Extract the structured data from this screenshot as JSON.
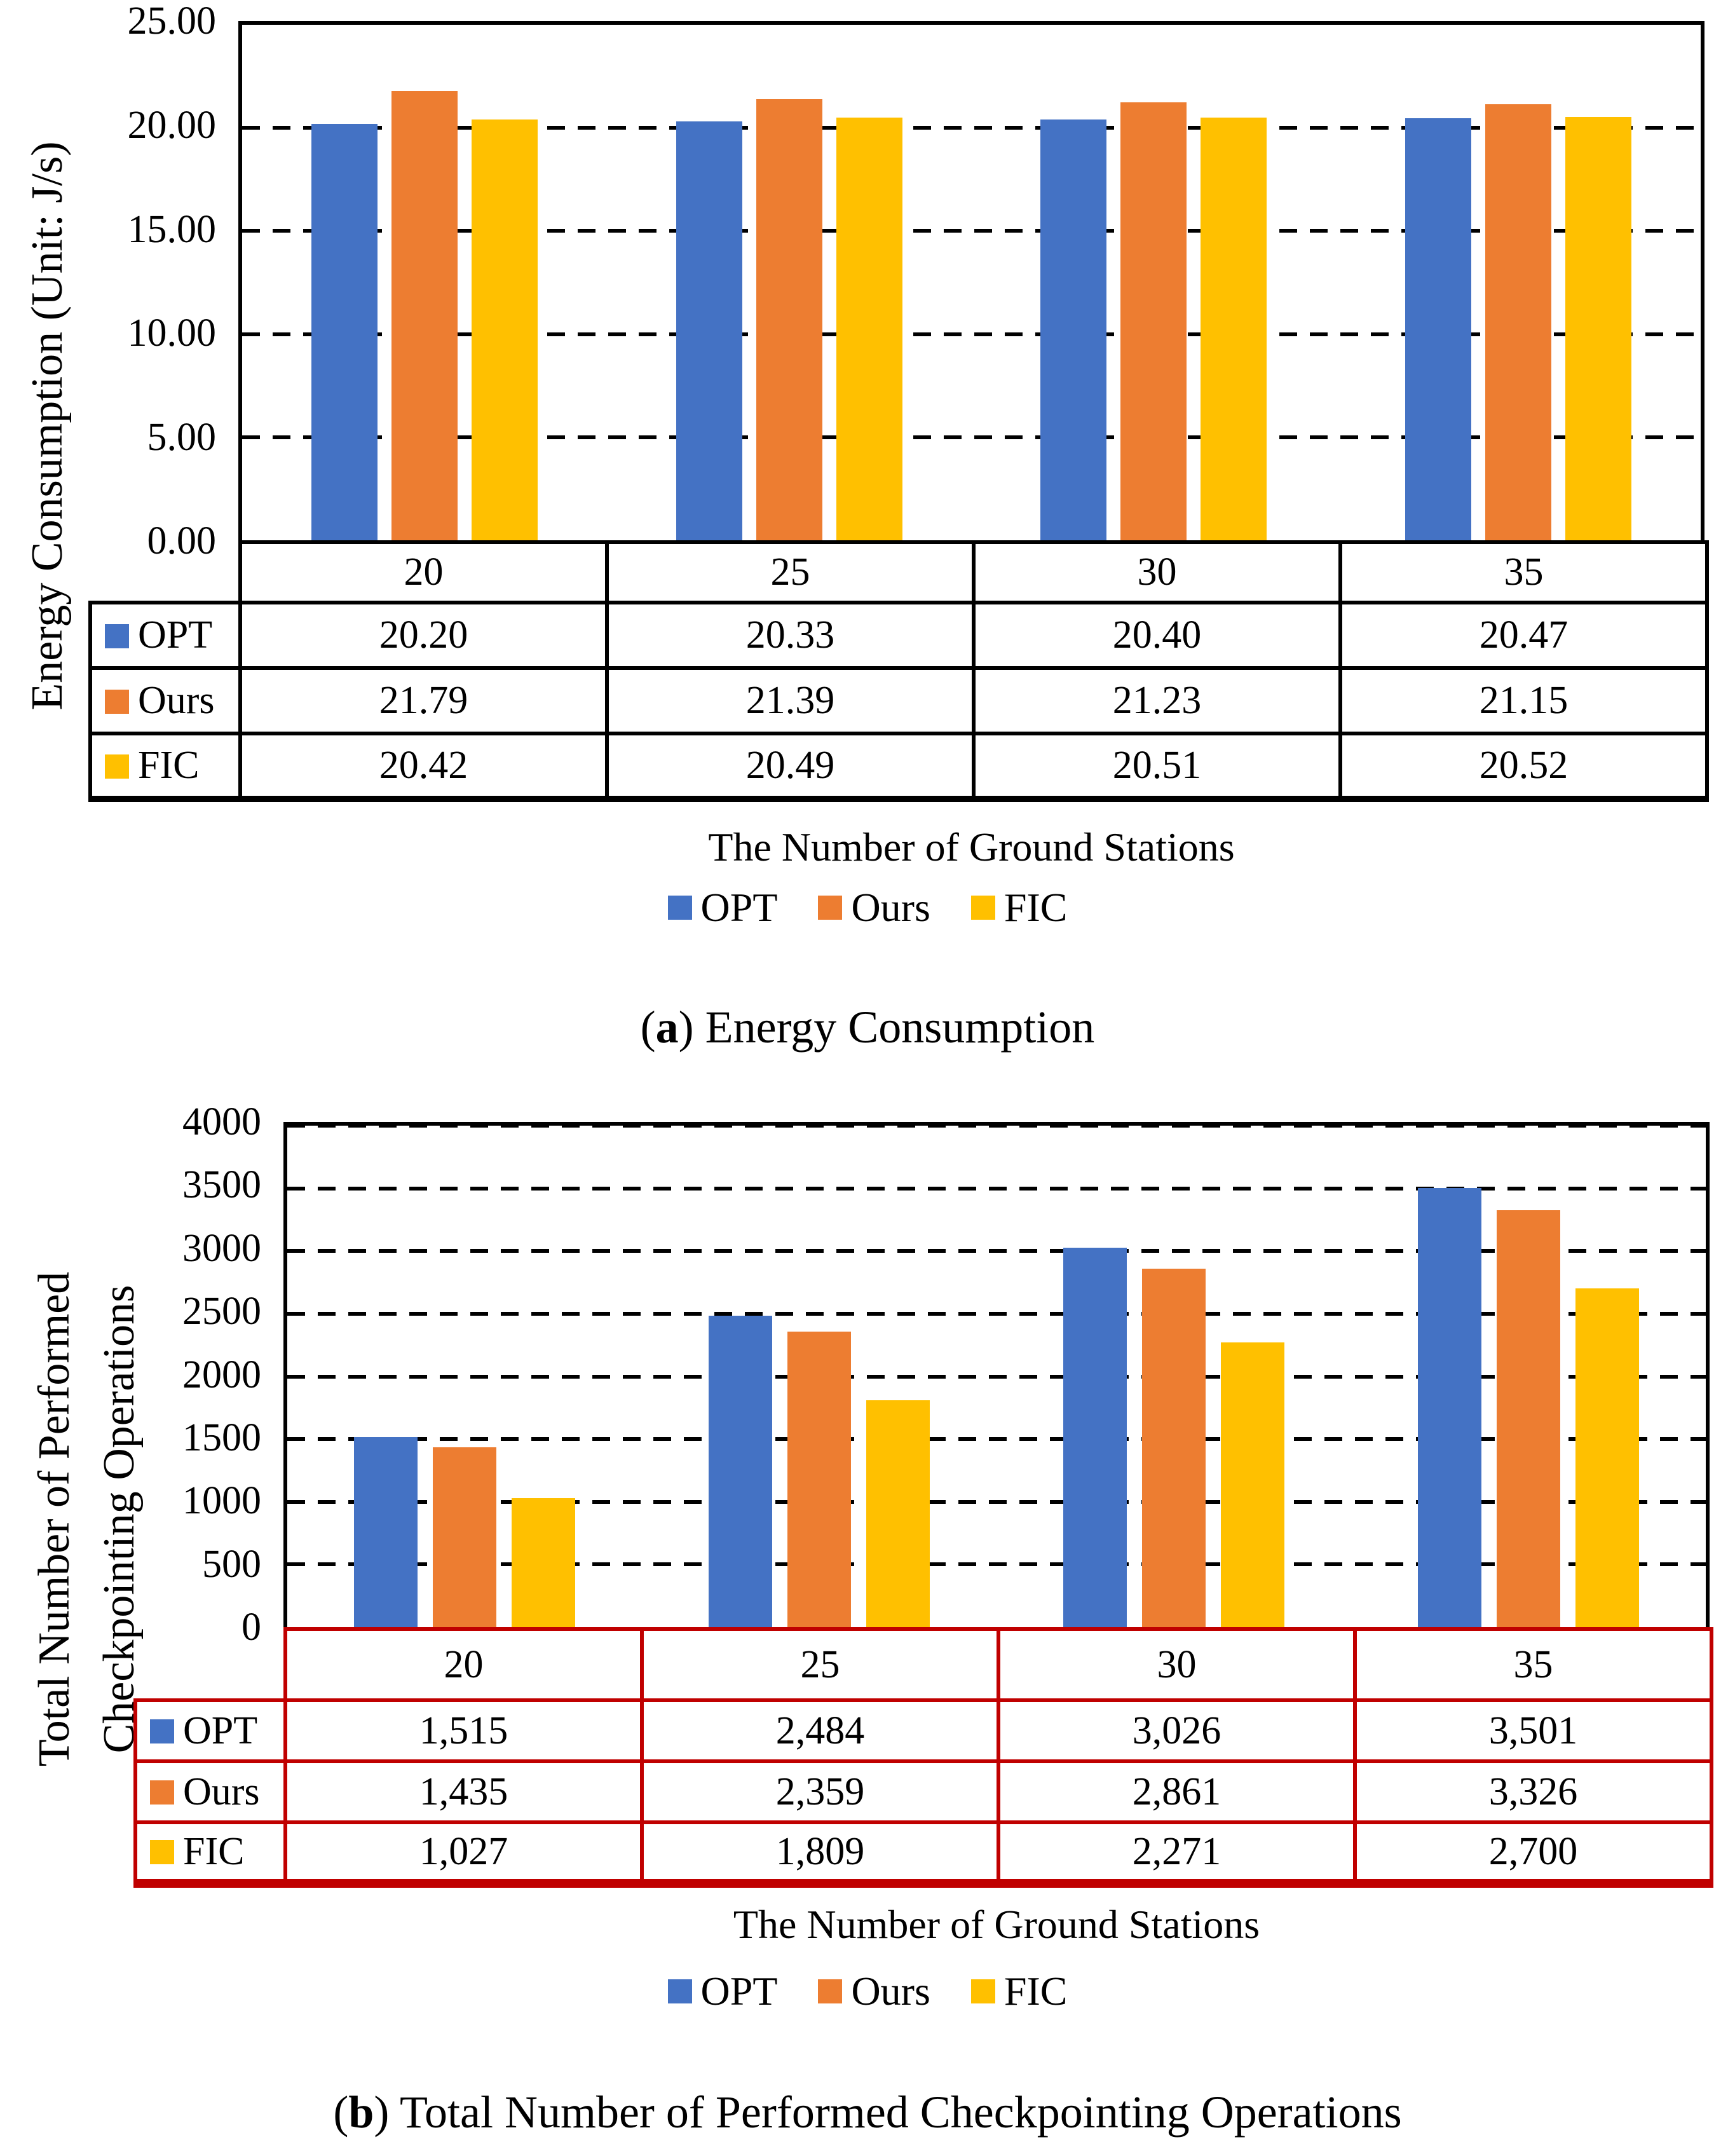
{
  "colors": {
    "opt": "#4472C4",
    "ours": "#ED7D31",
    "fic": "#FFC000",
    "grid": "#000000",
    "table_border_a": "#000000",
    "table_border_b": "#C00000",
    "background": "#FFFFFF"
  },
  "chart_data": [
    {
      "id": "a",
      "type": "bar",
      "caption": {
        "open": "(",
        "letter": "a",
        "rest": ") Energy Consumption"
      },
      "xlabel": "The Number of Ground Stations",
      "ylabel": "Energy Consumption (Unit: J/s)",
      "ylim": [
        0,
        25
      ],
      "ytick_step": 5,
      "y_ticks": [
        "25.00",
        "20.00",
        "15.00",
        "10.00",
        "5.00",
        "0.00"
      ],
      "grid": "horizontal-dashed",
      "legend_position": "bottom",
      "categories": [
        "20",
        "25",
        "30",
        "35"
      ],
      "series": [
        {
          "name": "OPT",
          "color": "#4472C4",
          "values": [
            20.2,
            20.33,
            20.4,
            20.47
          ],
          "display": [
            "20.20",
            "20.33",
            "20.40",
            "20.47"
          ]
        },
        {
          "name": "Ours",
          "color": "#ED7D31",
          "values": [
            21.79,
            21.39,
            21.23,
            21.15
          ],
          "display": [
            "21.79",
            "21.39",
            "21.23",
            "21.15"
          ]
        },
        {
          "name": "FIC",
          "color": "#FFC000",
          "values": [
            20.42,
            20.49,
            20.51,
            20.52
          ],
          "display": [
            "20.42",
            "20.49",
            "20.51",
            "20.52"
          ]
        }
      ],
      "table_border_color": "#000000"
    },
    {
      "id": "b",
      "type": "bar",
      "caption": {
        "open": "(",
        "letter": "b",
        "rest": ") Total Number of Performed Checkpointing Operations"
      },
      "xlabel": "The Number of Ground Stations",
      "ylabel": "Total Number of Performed Checkpointing Operations",
      "ylabel_lines": [
        "Total Number of Performed",
        "Checkpointing Operations"
      ],
      "ylim": [
        0,
        4000
      ],
      "ytick_step": 500,
      "y_ticks": [
        "4000",
        "3500",
        "3000",
        "2500",
        "2000",
        "1500",
        "1000",
        "500",
        "0"
      ],
      "grid": "horizontal-dashed",
      "legend_position": "bottom",
      "categories": [
        "20",
        "25",
        "30",
        "35"
      ],
      "series": [
        {
          "name": "OPT",
          "color": "#4472C4",
          "values": [
            1515,
            2484,
            3026,
            3501
          ],
          "display": [
            "1,515",
            "2,484",
            "3,026",
            "3,501"
          ]
        },
        {
          "name": "Ours",
          "color": "#ED7D31",
          "values": [
            1435,
            2359,
            2861,
            3326
          ],
          "display": [
            "1,435",
            "2,359",
            "2,861",
            "3,326"
          ]
        },
        {
          "name": "FIC",
          "color": "#FFC000",
          "values": [
            1027,
            1809,
            2271,
            2700
          ],
          "display": [
            "1,027",
            "1,809",
            "2,271",
            "2,700"
          ]
        }
      ],
      "table_border_color": "#C00000"
    }
  ]
}
